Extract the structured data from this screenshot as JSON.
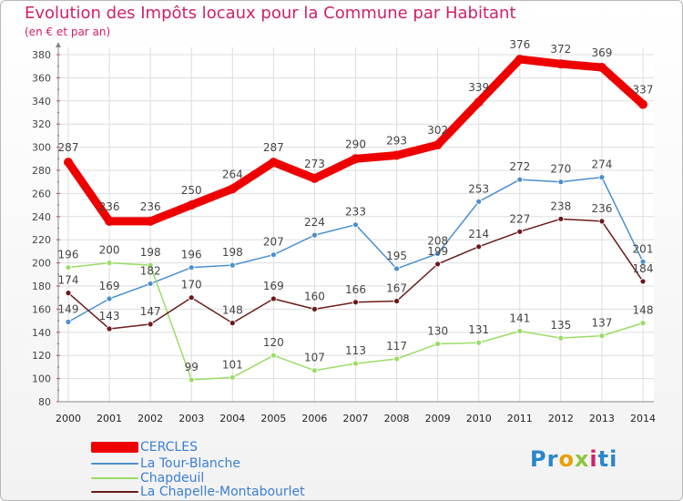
{
  "header": {
    "title": "Evolution des Impôts locaux pour la Commune par Habitant",
    "subtitle": "(en € et par an)"
  },
  "brand": {
    "parts": [
      {
        "text": "Pr",
        "color": "#2a86c8"
      },
      {
        "text": "o",
        "color": "#e8a000"
      },
      {
        "text": "x",
        "color": "#8cc63f"
      },
      {
        "text": "i",
        "color": "#d0206a"
      },
      {
        "text": "ti",
        "color": "#2a86c8"
      }
    ]
  },
  "chart_data": {
    "type": "line",
    "title": "Evolution des Impôts locaux pour la Commune par Habitant",
    "subtitle": "(en € et par an)",
    "xlabel": "",
    "ylabel": "",
    "ylim": [
      80,
      380
    ],
    "yticks": [
      80,
      100,
      120,
      140,
      160,
      180,
      200,
      220,
      240,
      260,
      280,
      300,
      320,
      340,
      360,
      380
    ],
    "grid": true,
    "legend_position": "bottom-left",
    "categories": [
      "2000",
      "2001",
      "2002",
      "2003",
      "2004",
      "2005",
      "2006",
      "2007",
      "2008",
      "2009",
      "2010",
      "2011",
      "2012",
      "2013",
      "2014"
    ],
    "series": [
      {
        "name": "CERCLES",
        "color": "#ee0000",
        "values": [
          287,
          236,
          236,
          250,
          264,
          287,
          273,
          290,
          293,
          302,
          339,
          376,
          372,
          369,
          337
        ]
      },
      {
        "name": "La Tour-Blanche",
        "color": "#4a8fcf",
        "values": [
          149,
          169,
          182,
          196,
          198,
          207,
          224,
          233,
          195,
          208,
          253,
          272,
          270,
          274,
          201
        ]
      },
      {
        "name": "Chapdeuil",
        "color": "#99dd66",
        "values": [
          196,
          200,
          198,
          99,
          101,
          120,
          107,
          113,
          117,
          130,
          131,
          141,
          135,
          137,
          148
        ]
      },
      {
        "name": "La Chapelle-Montabourlet",
        "color": "#6b1a1a",
        "values": [
          174,
          143,
          147,
          170,
          148,
          169,
          160,
          166,
          167,
          199,
          214,
          227,
          238,
          236,
          184
        ]
      }
    ]
  }
}
